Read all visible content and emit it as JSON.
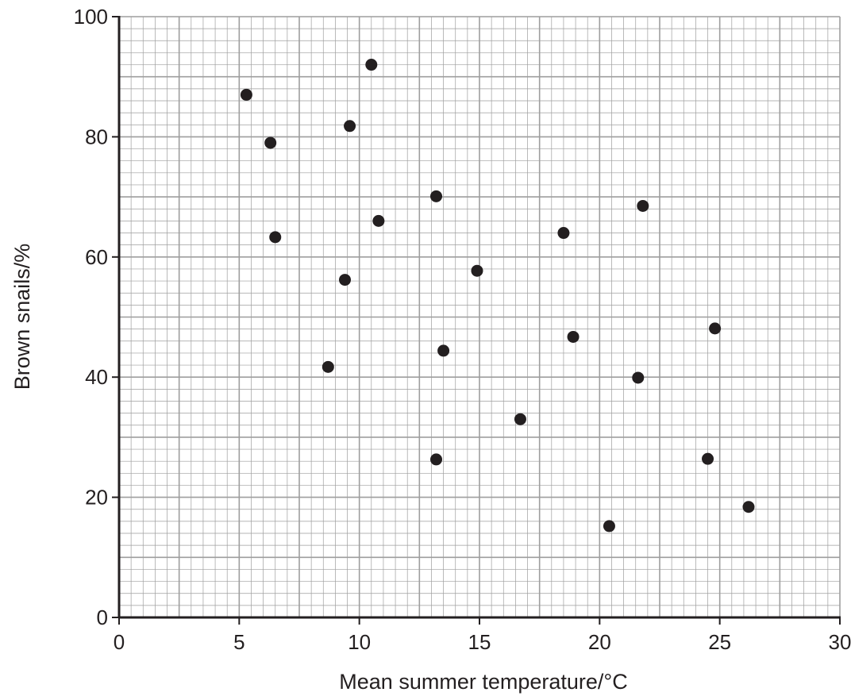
{
  "chart_data": {
    "type": "scatter",
    "title": "",
    "xlabel": "Mean summer temperature/°C",
    "ylabel": "Brown snails/%",
    "xlim": [
      0,
      30
    ],
    "ylim": [
      0,
      100
    ],
    "x_ticks": [
      "0",
      "5",
      "10",
      "15",
      "20",
      "25",
      "30"
    ],
    "y_ticks": [
      "0",
      "20",
      "40",
      "60",
      "80",
      "100"
    ],
    "grid": true,
    "legend": "none",
    "point_color": "#231f20",
    "grid_color": "#9e9e9e",
    "points": [
      {
        "x": 5.3,
        "y": 87
      },
      {
        "x": 6.3,
        "y": 79
      },
      {
        "x": 6.5,
        "y": 63.3
      },
      {
        "x": 8.7,
        "y": 41.7
      },
      {
        "x": 9.4,
        "y": 56.2
      },
      {
        "x": 9.6,
        "y": 81.8
      },
      {
        "x": 10.5,
        "y": 92
      },
      {
        "x": 10.8,
        "y": 66
      },
      {
        "x": 13.2,
        "y": 70.1
      },
      {
        "x": 13.2,
        "y": 26.3
      },
      {
        "x": 13.5,
        "y": 44.4
      },
      {
        "x": 14.9,
        "y": 57.7
      },
      {
        "x": 16.7,
        "y": 33
      },
      {
        "x": 18.5,
        "y": 64
      },
      {
        "x": 18.9,
        "y": 46.7
      },
      {
        "x": 20.4,
        "y": 15.2
      },
      {
        "x": 21.6,
        "y": 39.9
      },
      {
        "x": 21.8,
        "y": 68.5
      },
      {
        "x": 24.5,
        "y": 26.4
      },
      {
        "x": 24.8,
        "y": 48.1
      },
      {
        "x": 26.2,
        "y": 18.4
      }
    ]
  }
}
